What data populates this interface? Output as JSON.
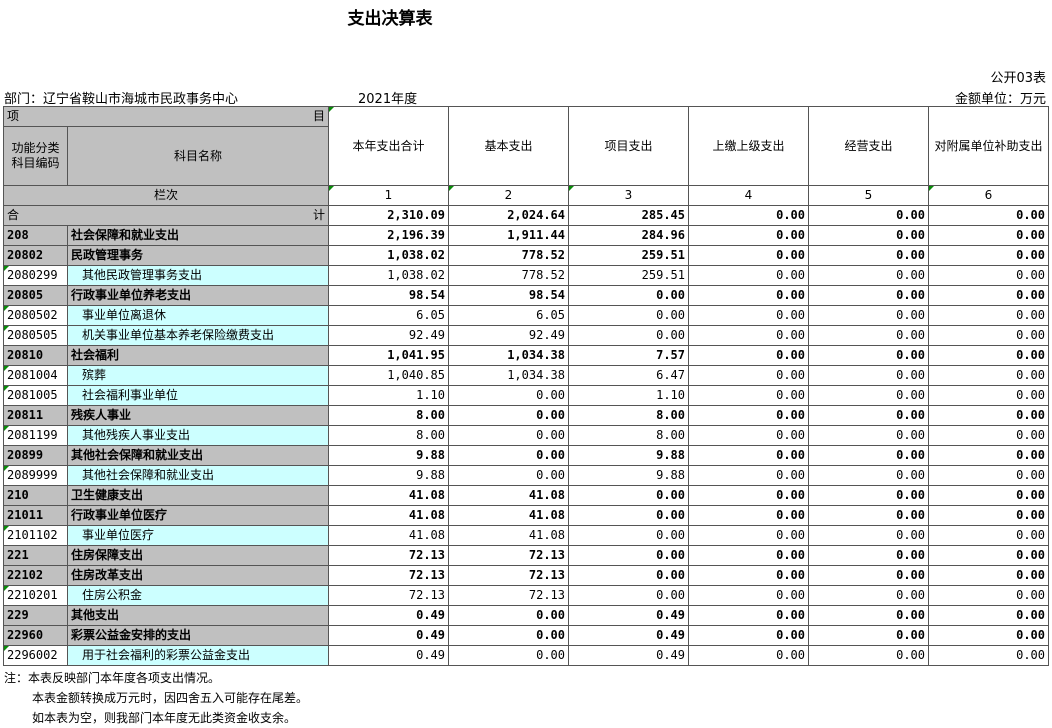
{
  "title": "支出决算表",
  "public_no": "公开03表",
  "department": "部门：辽宁省鞍山市海城市民政事务中心",
  "year": "2021年度",
  "unit": "金额单位：万元",
  "header": {
    "xiang": "项",
    "mu": "目",
    "func_code": "功能分类科目编码",
    "subject_name": "科目名称",
    "lanci": "栏次",
    "heji_left": "合",
    "heji_right": "计",
    "columns": [
      "本年支出合计",
      "基本支出",
      "项目支出",
      "上缴上级支出",
      "经营支出",
      "对附属单位补助支出"
    ],
    "col_nums": [
      "1",
      "2",
      "3",
      "4",
      "5",
      "6"
    ]
  },
  "total": [
    "2,310.09",
    "2,024.64",
    "285.45",
    "0.00",
    "0.00",
    "0.00"
  ],
  "rows": [
    {
      "code": "208",
      "name": "社会保障和就业支出",
      "bold": true,
      "values": [
        "2,196.39",
        "1,911.44",
        "284.96",
        "0.00",
        "0.00",
        "0.00"
      ]
    },
    {
      "code": "20802",
      "name": "民政管理事务",
      "bold": true,
      "values": [
        "1,038.02",
        "778.52",
        "259.51",
        "0.00",
        "0.00",
        "0.00"
      ]
    },
    {
      "code": "2080299",
      "name": "其他民政管理事务支出",
      "bold": false,
      "values": [
        "1,038.02",
        "778.52",
        "259.51",
        "0.00",
        "0.00",
        "0.00"
      ]
    },
    {
      "code": "20805",
      "name": "行政事业单位养老支出",
      "bold": true,
      "values": [
        "98.54",
        "98.54",
        "0.00",
        "0.00",
        "0.00",
        "0.00"
      ]
    },
    {
      "code": "2080502",
      "name": "事业单位离退休",
      "bold": false,
      "values": [
        "6.05",
        "6.05",
        "0.00",
        "0.00",
        "0.00",
        "0.00"
      ]
    },
    {
      "code": "2080505",
      "name": "机关事业单位基本养老保险缴费支出",
      "bold": false,
      "values": [
        "92.49",
        "92.49",
        "0.00",
        "0.00",
        "0.00",
        "0.00"
      ]
    },
    {
      "code": "20810",
      "name": "社会福利",
      "bold": true,
      "values": [
        "1,041.95",
        "1,034.38",
        "7.57",
        "0.00",
        "0.00",
        "0.00"
      ]
    },
    {
      "code": "2081004",
      "name": "殡葬",
      "bold": false,
      "values": [
        "1,040.85",
        "1,034.38",
        "6.47",
        "0.00",
        "0.00",
        "0.00"
      ]
    },
    {
      "code": "2081005",
      "name": "社会福利事业单位",
      "bold": false,
      "values": [
        "1.10",
        "0.00",
        "1.10",
        "0.00",
        "0.00",
        "0.00"
      ]
    },
    {
      "code": "20811",
      "name": "残疾人事业",
      "bold": true,
      "values": [
        "8.00",
        "0.00",
        "8.00",
        "0.00",
        "0.00",
        "0.00"
      ]
    },
    {
      "code": "2081199",
      "name": "其他残疾人事业支出",
      "bold": false,
      "values": [
        "8.00",
        "0.00",
        "8.00",
        "0.00",
        "0.00",
        "0.00"
      ]
    },
    {
      "code": "20899",
      "name": "其他社会保障和就业支出",
      "bold": true,
      "values": [
        "9.88",
        "0.00",
        "9.88",
        "0.00",
        "0.00",
        "0.00"
      ]
    },
    {
      "code": "2089999",
      "name": "其他社会保障和就业支出",
      "bold": false,
      "values": [
        "9.88",
        "0.00",
        "9.88",
        "0.00",
        "0.00",
        "0.00"
      ]
    },
    {
      "code": "210",
      "name": "卫生健康支出",
      "bold": true,
      "values": [
        "41.08",
        "41.08",
        "0.00",
        "0.00",
        "0.00",
        "0.00"
      ]
    },
    {
      "code": "21011",
      "name": "行政事业单位医疗",
      "bold": true,
      "values": [
        "41.08",
        "41.08",
        "0.00",
        "0.00",
        "0.00",
        "0.00"
      ]
    },
    {
      "code": "2101102",
      "name": "事业单位医疗",
      "bold": false,
      "values": [
        "41.08",
        "41.08",
        "0.00",
        "0.00",
        "0.00",
        "0.00"
      ]
    },
    {
      "code": "221",
      "name": "住房保障支出",
      "bold": true,
      "values": [
        "72.13",
        "72.13",
        "0.00",
        "0.00",
        "0.00",
        "0.00"
      ]
    },
    {
      "code": "22102",
      "name": "住房改革支出",
      "bold": true,
      "values": [
        "72.13",
        "72.13",
        "0.00",
        "0.00",
        "0.00",
        "0.00"
      ]
    },
    {
      "code": "2210201",
      "name": "住房公积金",
      "bold": false,
      "values": [
        "72.13",
        "72.13",
        "0.00",
        "0.00",
        "0.00",
        "0.00"
      ]
    },
    {
      "code": "229",
      "name": "其他支出",
      "bold": true,
      "values": [
        "0.49",
        "0.00",
        "0.49",
        "0.00",
        "0.00",
        "0.00"
      ]
    },
    {
      "code": "22960",
      "name": "彩票公益金安排的支出",
      "bold": true,
      "values": [
        "0.49",
        "0.00",
        "0.49",
        "0.00",
        "0.00",
        "0.00"
      ]
    },
    {
      "code": "2296002",
      "name": "用于社会福利的彩票公益金支出",
      "bold": false,
      "values": [
        "0.49",
        "0.00",
        "0.49",
        "0.00",
        "0.00",
        "0.00"
      ]
    }
  ],
  "notes": [
    "注：本表反映部门本年度各项支出情况。",
    "本表金额转换成万元时，因四舍五入可能存在尾差。",
    "如本表为空，则我部门本年度无此类资金收支余。"
  ],
  "colors": {
    "header_gray": "#c0c0c0",
    "leaf_cyan": "#ccffff",
    "grid": "#555555"
  }
}
